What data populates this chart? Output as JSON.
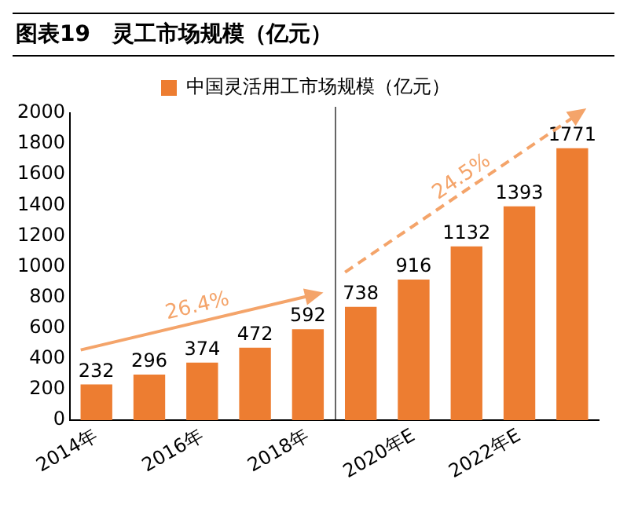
{
  "chart_data": {
    "type": "bar",
    "title": "图表19　灵工市场规模（亿元）",
    "categories": [
      "2014年",
      null,
      "2016年",
      null,
      "2018年",
      null,
      "2020年E",
      null,
      "2022年E",
      null
    ],
    "series": [
      {
        "name": "中国灵活用工市场规模（亿元）",
        "color": "#ed7d31",
        "values": [
          232,
          296,
          374,
          472,
          592,
          738,
          916,
          1132,
          1393,
          1771
        ]
      }
    ],
    "ylim": [
      0,
      2000
    ],
    "yticks": [
      0,
      200,
      400,
      600,
      800,
      1000,
      1200,
      1400,
      1600,
      1800,
      2000
    ],
    "grid": false,
    "legend": "top",
    "data_labels": true,
    "annotations": [
      "26.4%",
      "24.5%"
    ]
  }
}
